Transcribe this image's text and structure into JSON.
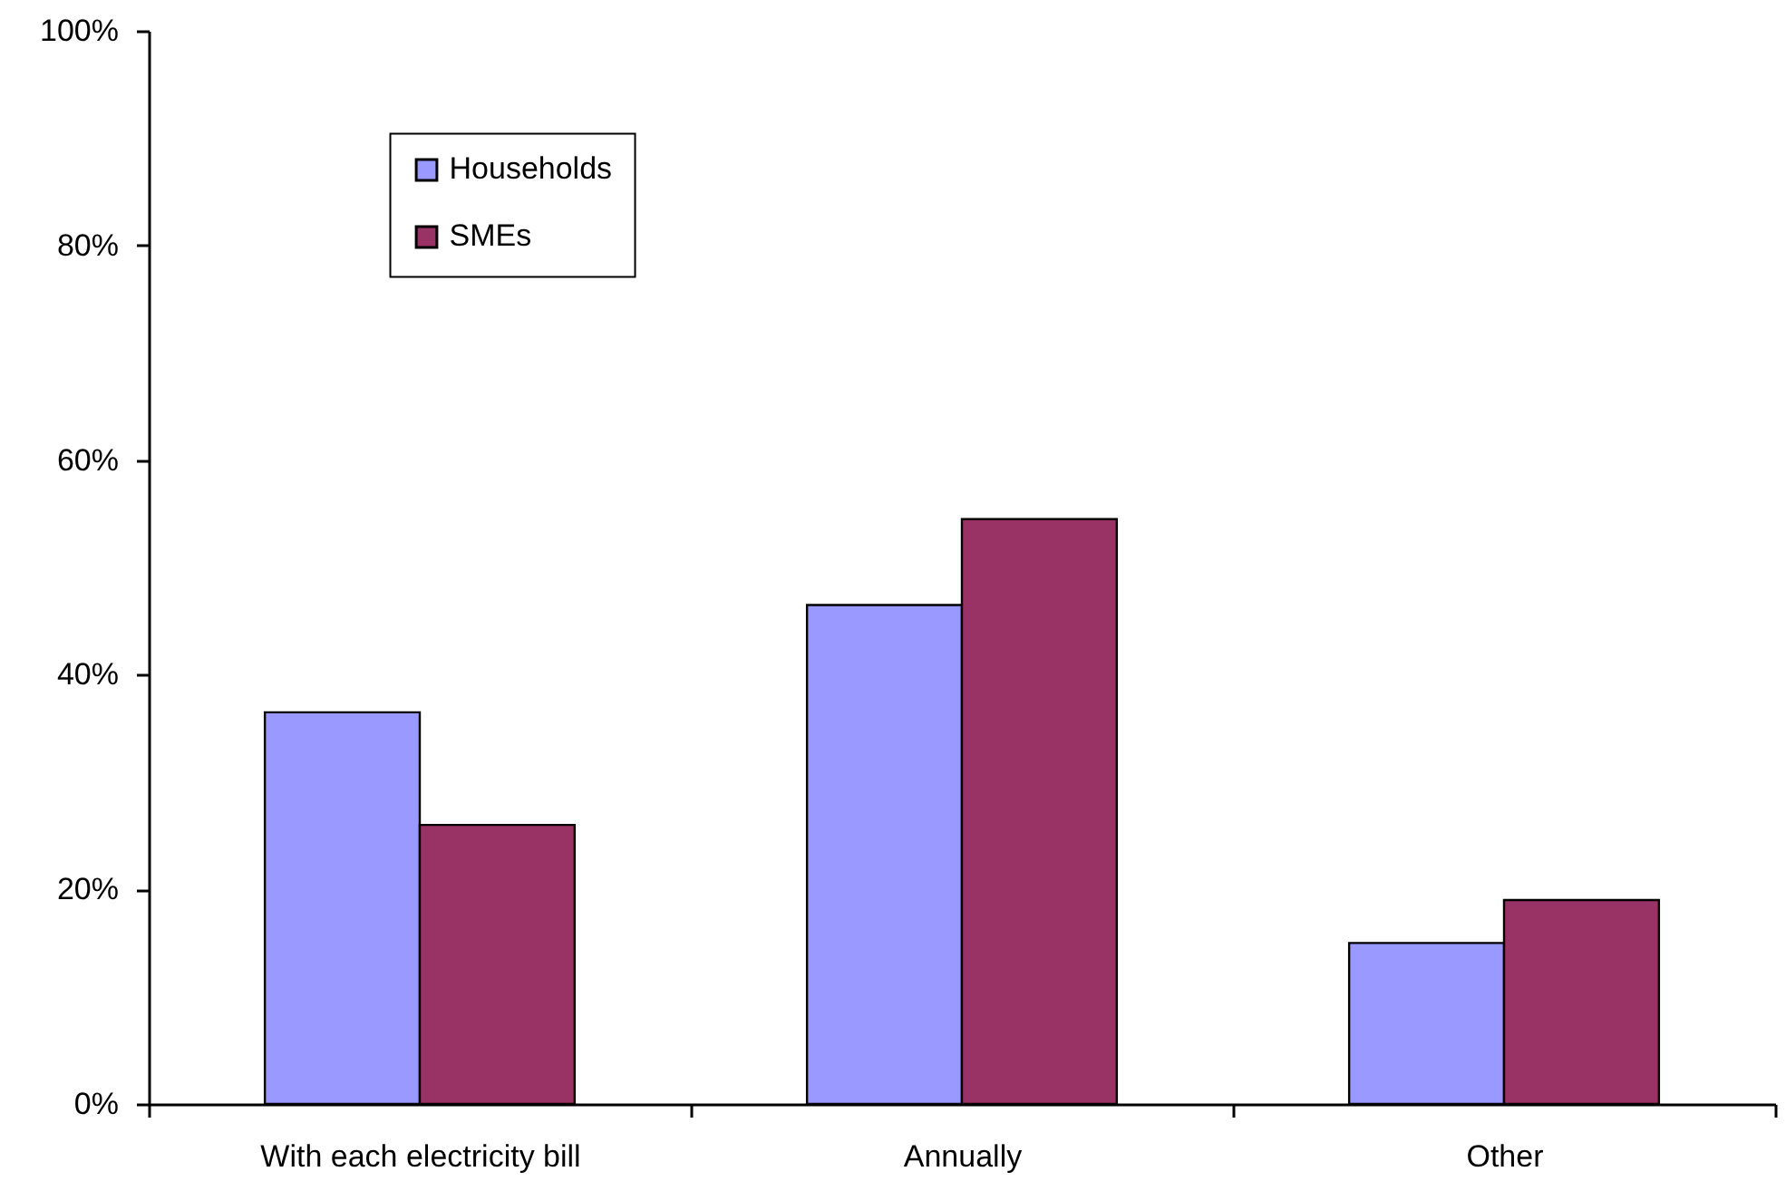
{
  "chart_data": {
    "type": "bar",
    "categories": [
      "With each electricity bill",
      "Annually",
      "Other"
    ],
    "series": [
      {
        "name": "Households",
        "color": "#9999ff",
        "values": [
          36.5,
          46.5,
          15
        ]
      },
      {
        "name": "SMEs",
        "color": "#993366",
        "values": [
          26,
          54.5,
          19
        ]
      }
    ],
    "ylim": [
      0,
      100
    ],
    "yticks": [
      {
        "value": 0,
        "label": "0%"
      },
      {
        "value": 20,
        "label": "20%"
      },
      {
        "value": 40,
        "label": "40%"
      },
      {
        "value": 60,
        "label": "60%"
      },
      {
        "value": 80,
        "label": "80%"
      },
      {
        "value": 100,
        "label": "100%"
      }
    ],
    "legend": "top left"
  }
}
